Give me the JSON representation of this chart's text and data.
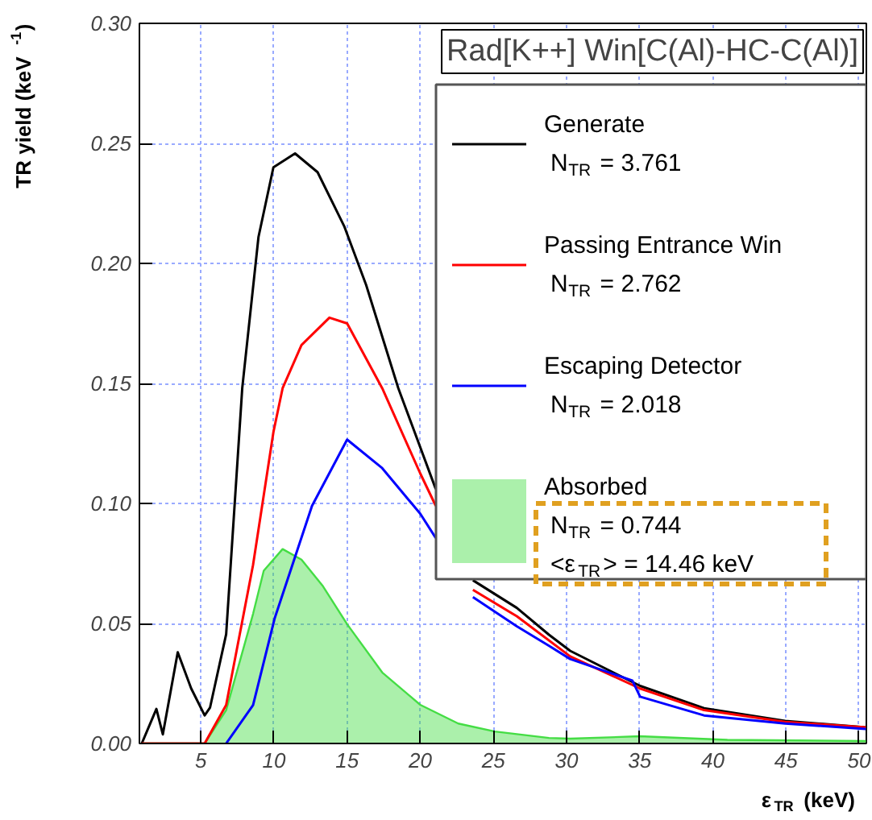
{
  "chart_data": {
    "type": "line",
    "title": "Rad[K++] Win[C(Al)-HC-C(Al)]",
    "xlabel": "ε$_{TR}$ (keV)",
    "ylabel": "TR yield (keV$^{-1}$)",
    "xlim": [
      0.8,
      50.5
    ],
    "ylim": [
      0,
      0.3
    ],
    "xticks": [
      5,
      10,
      15,
      20,
      25,
      30,
      35,
      40,
      45,
      50
    ],
    "yticks": [
      {
        "value": 0,
        "label": "0.00"
      },
      {
        "value": 0.05,
        "label": "0.05"
      },
      {
        "value": 0.1,
        "label": "0.10"
      },
      {
        "value": 0.15,
        "label": "0.15"
      },
      {
        "value": 0.2,
        "label": "0.20"
      },
      {
        "value": 0.25,
        "label": "0.25"
      },
      {
        "value": 0.3,
        "label": "0.30"
      }
    ],
    "grid": true,
    "legend": "top right",
    "series": [
      {
        "name": "Generate\nN$_{TR}$ = 3.761",
        "color": "#000000",
        "x": [
          0.96,
          1.96,
          2.4,
          3.42,
          4.34,
          5.26,
          5.63,
          6.73,
          7.83,
          8.94,
          9.96,
          11.44,
          12.98,
          14.8,
          16.3,
          18.5,
          21.06,
          22.3,
          23.6,
          26.6,
          28.8,
          30.25,
          35.03,
          39.4,
          44.95,
          50.47
        ],
        "values": [
          0,
          0.0144,
          0.0038,
          0.038,
          0.0229,
          0.0117,
          0.015,
          0.0455,
          0.148,
          0.211,
          0.24,
          0.2458,
          0.238,
          0.2155,
          0.191,
          0.148,
          0.106,
          null,
          0.068,
          0.0565,
          0.0453,
          0.0386,
          0.024,
          0.0147,
          0.0094,
          0.0067
        ]
      },
      {
        "name": "Passing Entrance Win\nN$_{TR}$ = 2.762",
        "color": "#ff0000",
        "x": [
          0.96,
          5.26,
          6.73,
          8.57,
          9.97,
          10.59,
          11.88,
          13.79,
          15.0,
          17.4,
          20.0,
          21.06,
          22.3,
          23.6,
          26.6,
          30.25,
          35.03,
          39.4,
          44.95,
          50.47
        ],
        "values": [
          0,
          0,
          0.016,
          0.0744,
          0.13,
          0.148,
          0.166,
          0.1774,
          0.175,
          0.148,
          0.1125,
          0.099,
          null,
          0.064,
          0.053,
          0.0363,
          0.0229,
          0.0139,
          0.009,
          0.0067
        ]
      },
      {
        "name": "Escaping Detector\nN$_{TR}$ = 2.018",
        "color": "#0000ff",
        "x": [
          6.73,
          8.57,
          10.04,
          12.6,
          15.0,
          17.4,
          20.0,
          21.06,
          22.3,
          23.6,
          26.6,
          28.78,
          30.25,
          34.5,
          35.03,
          39.4,
          44.95,
          50.47
        ],
        "values": [
          0,
          0.016,
          0.052,
          0.099,
          0.1266,
          0.1147,
          0.0957,
          0.0856,
          null,
          0.061,
          0.0488,
          0.0408,
          0.0352,
          0.0262,
          0.0195,
          0.0117,
          0.0083,
          0.006
        ]
      },
      {
        "name": "Absorbed\nN$_{TR}$ = 0.744\n<ε$_{TR}$> = 14.46 keV",
        "type": "area",
        "color": "#44dd44",
        "x": [
          0.96,
          5.26,
          6.73,
          8.57,
          9.3,
          10.59,
          11.88,
          13.35,
          15.0,
          17.4,
          20.0,
          22.6,
          25.1,
          28.8,
          30.25,
          35.0,
          41.0,
          50.47
        ],
        "values": [
          0,
          0,
          0.0139,
          0.054,
          0.072,
          0.081,
          0.0766,
          0.0655,
          0.0497,
          0.0296,
          0.0161,
          0.0083,
          0.005,
          0.0023,
          0.002,
          0.003,
          0.0015,
          0.001
        ]
      }
    ]
  }
}
